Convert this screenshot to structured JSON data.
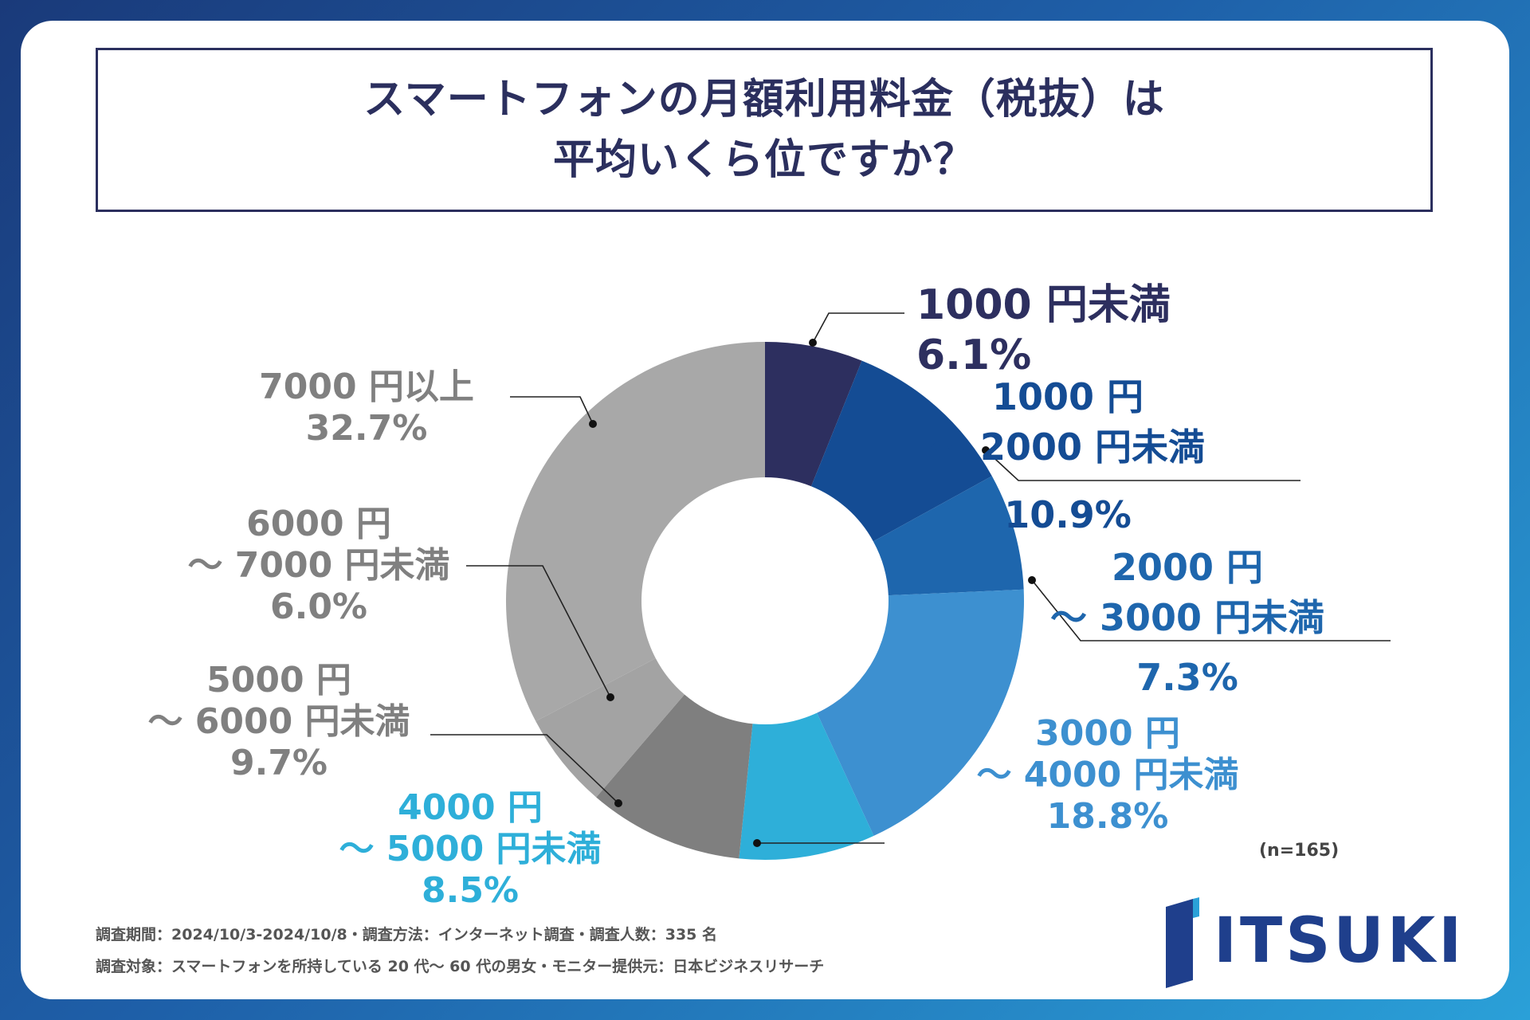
{
  "title": {
    "line1": "スマートフォンの月額利用料金（税抜）は",
    "line2": "平均いくら位ですか？"
  },
  "chart_data": {
    "type": "pie",
    "variant": "donut",
    "categories": [
      "1000 円未満",
      "1000 円〜 2000 円未満",
      "2000 円〜 3000 円未満",
      "3000 円〜 4000 円未満",
      "4000 円〜 5000 円未満",
      "5000 円〜 6000 円未満",
      "6000 円〜 7000 円未満",
      "7000 円以上"
    ],
    "values": [
      6.1,
      10.9,
      7.3,
      18.8,
      8.5,
      9.7,
      6.0,
      32.7
    ],
    "colors": [
      "#2d2f5f",
      "#144c94",
      "#1e66ad",
      "#3d90d0",
      "#2eafd9",
      "#7f7f7f",
      "#a3a3a3",
      "#a8a8a8"
    ],
    "labels": [
      {
        "lines": [
          "1000 円未満",
          "6.1%"
        ],
        "color": "#2d2f5f"
      },
      {
        "lines": [
          "1000 円",
          "〜 2000 円未満",
          "10.9%"
        ],
        "color": "#144c94"
      },
      {
        "lines": [
          "2000 円",
          "〜 3000 円未満",
          "7.3%"
        ],
        "color": "#1e66ad"
      },
      {
        "lines": [
          "3000 円",
          "〜 4000 円未満",
          "18.8%"
        ],
        "color": "#3d90d0"
      },
      {
        "lines": [
          "4000 円",
          "〜 5000 円未満",
          "8.5%"
        ],
        "color": "#2eafd9"
      },
      {
        "lines": [
          "5000 円",
          "〜 6000 円未満",
          "9.7%"
        ],
        "color": "#808080"
      },
      {
        "lines": [
          "6000 円",
          "〜 7000 円未満",
          "6.0%"
        ],
        "color": "#808080"
      },
      {
        "lines": [
          "7000 円以上",
          "32.7%"
        ],
        "color": "#808080"
      }
    ],
    "n_label": "(n=165)"
  },
  "footer": {
    "line1": "調査期間：2024/10/3-2024/10/8・調査方法：インターネット調査・調査人数：335 名",
    "line2": "調査対象：スマートフォンを所持している 20 代〜 60 代の男女・モニター提供元：日本ビジネスリサーチ"
  },
  "logo": {
    "text": "ITSUKI"
  }
}
